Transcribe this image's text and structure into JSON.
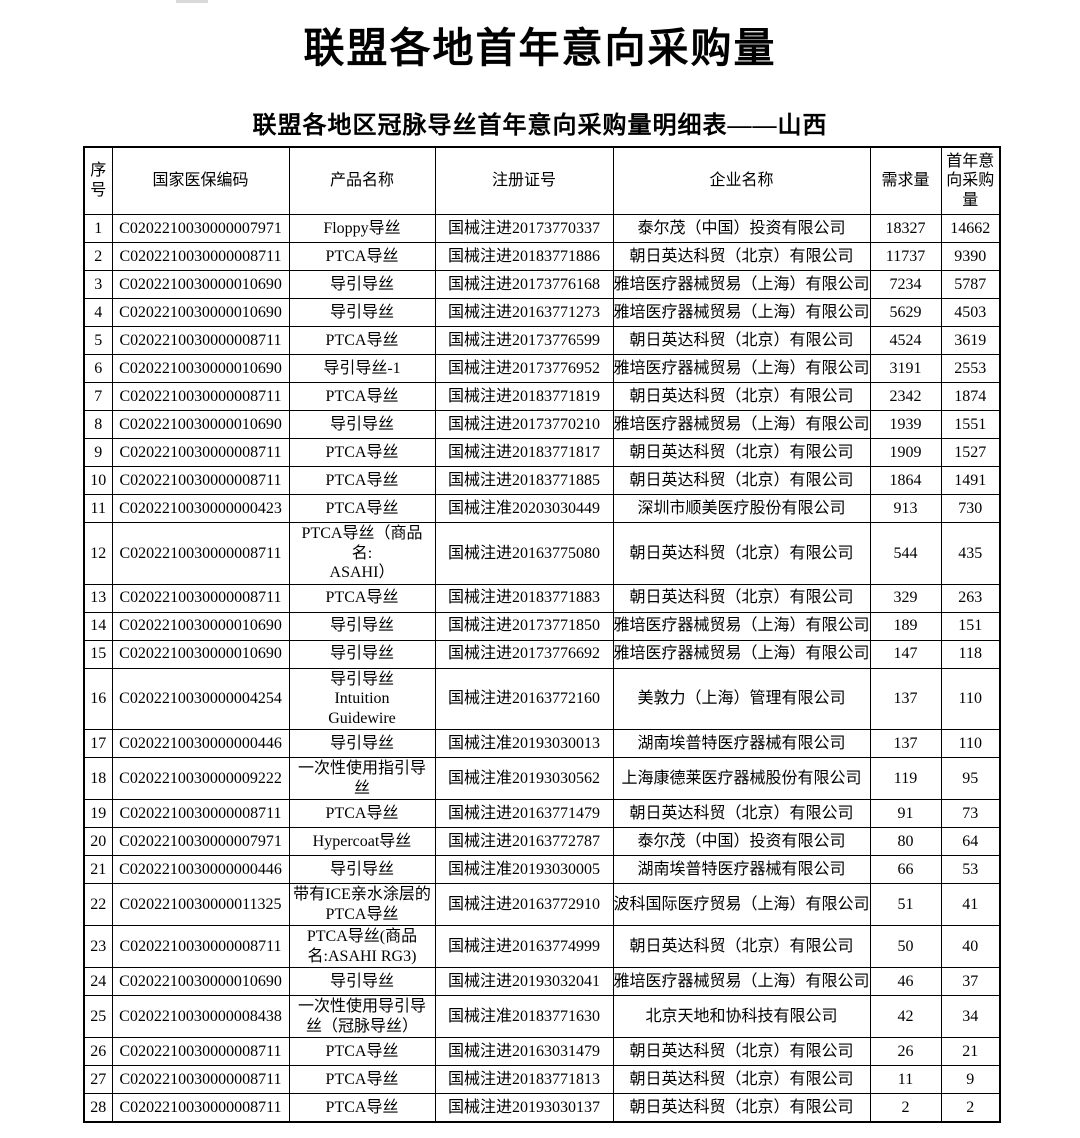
{
  "page": {
    "title": "联盟各地首年意向采购量",
    "subtitle": "联盟各地区冠脉导丝首年意向采购量明细表——山西"
  },
  "table": {
    "columns": [
      {
        "key": "index",
        "label": "序号"
      },
      {
        "key": "code",
        "label": "国家医保编码"
      },
      {
        "key": "product",
        "label": "产品名称"
      },
      {
        "key": "registration",
        "label": "注册证号"
      },
      {
        "key": "company",
        "label": "企业名称"
      },
      {
        "key": "demand",
        "label": "需求量"
      },
      {
        "key": "first_year",
        "label": "首年意向采购量"
      }
    ],
    "rows": [
      {
        "index": "1",
        "code": "C0202210030000007971",
        "product": "Floppy导丝",
        "registration": "国械注进20173770337",
        "company": "泰尔茂（中国）投资有限公司",
        "demand": "18327",
        "first_year": "14662"
      },
      {
        "index": "2",
        "code": "C0202210030000008711",
        "product": "PTCA导丝",
        "registration": "国械注进20183771886",
        "company": "朝日英达科贸（北京）有限公司",
        "demand": "11737",
        "first_year": "9390"
      },
      {
        "index": "3",
        "code": "C0202210030000010690",
        "product": "导引导丝",
        "registration": "国械注进20173776168",
        "company": "雅培医疗器械贸易（上海）有限公司",
        "demand": "7234",
        "first_year": "5787"
      },
      {
        "index": "4",
        "code": "C0202210030000010690",
        "product": "导引导丝",
        "registration": "国械注进20163771273",
        "company": "雅培医疗器械贸易（上海）有限公司",
        "demand": "5629",
        "first_year": "4503"
      },
      {
        "index": "5",
        "code": "C0202210030000008711",
        "product": "PTCA导丝",
        "registration": "国械注进20173776599",
        "company": "朝日英达科贸（北京）有限公司",
        "demand": "4524",
        "first_year": "3619"
      },
      {
        "index": "6",
        "code": "C0202210030000010690",
        "product": "导引导丝-1",
        "registration": "国械注进20173776952",
        "company": "雅培医疗器械贸易（上海）有限公司",
        "demand": "3191",
        "first_year": "2553"
      },
      {
        "index": "7",
        "code": "C0202210030000008711",
        "product": "PTCA导丝",
        "registration": "国械注进20183771819",
        "company": "朝日英达科贸（北京）有限公司",
        "demand": "2342",
        "first_year": "1874"
      },
      {
        "index": "8",
        "code": "C0202210030000010690",
        "product": "导引导丝",
        "registration": "国械注进20173770210",
        "company": "雅培医疗器械贸易（上海）有限公司",
        "demand": "1939",
        "first_year": "1551"
      },
      {
        "index": "9",
        "code": "C0202210030000008711",
        "product": "PTCA导丝",
        "registration": "国械注进20183771817",
        "company": "朝日英达科贸（北京）有限公司",
        "demand": "1909",
        "first_year": "1527"
      },
      {
        "index": "10",
        "code": "C0202210030000008711",
        "product": "PTCA导丝",
        "registration": "国械注进20183771885",
        "company": "朝日英达科贸（北京）有限公司",
        "demand": "1864",
        "first_year": "1491"
      },
      {
        "index": "11",
        "code": "C0202210030000000423",
        "product": "PTCA导丝",
        "registration": "国械注准20203030449",
        "company": "深圳市顺美医疗股份有限公司",
        "demand": "913",
        "first_year": "730"
      },
      {
        "index": "12",
        "code": "C0202210030000008711",
        "product": "PTCA导丝（商品名:\nASAHI）",
        "registration": "国械注进20163775080",
        "company": "朝日英达科贸（北京）有限公司",
        "demand": "544",
        "first_year": "435"
      },
      {
        "index": "13",
        "code": "C0202210030000008711",
        "product": "PTCA导丝",
        "registration": "国械注进20183771883",
        "company": "朝日英达科贸（北京）有限公司",
        "demand": "329",
        "first_year": "263"
      },
      {
        "index": "14",
        "code": "C0202210030000010690",
        "product": "导引导丝",
        "registration": "国械注进20173771850",
        "company": "雅培医疗器械贸易（上海）有限公司",
        "demand": "189",
        "first_year": "151"
      },
      {
        "index": "15",
        "code": "C0202210030000010690",
        "product": "导引导丝",
        "registration": "国械注进20173776692",
        "company": "雅培医疗器械贸易（上海）有限公司",
        "demand": "147",
        "first_year": "118"
      },
      {
        "index": "16",
        "code": "C0202210030000004254",
        "product": "导引导丝\nIntuition\nGuidewire",
        "registration": "国械注进20163772160",
        "company": "美敦力（上海）管理有限公司",
        "demand": "137",
        "first_year": "110"
      },
      {
        "index": "17",
        "code": "C0202210030000000446",
        "product": "导引导丝",
        "registration": "国械注准20193030013",
        "company": "湖南埃普特医疗器械有限公司",
        "demand": "137",
        "first_year": "110"
      },
      {
        "index": "18",
        "code": "C0202210030000009222",
        "product": "一次性使用指引导\n丝",
        "registration": "国械注准20193030562",
        "company": "上海康德莱医疗器械股份有限公司",
        "demand": "119",
        "first_year": "95"
      },
      {
        "index": "19",
        "code": "C0202210030000008711",
        "product": "PTCA导丝",
        "registration": "国械注进20163771479",
        "company": "朝日英达科贸（北京）有限公司",
        "demand": "91",
        "first_year": "73"
      },
      {
        "index": "20",
        "code": "C0202210030000007971",
        "product": "Hypercoat导丝",
        "registration": "国械注进20163772787",
        "company": "泰尔茂（中国）投资有限公司",
        "demand": "80",
        "first_year": "64"
      },
      {
        "index": "21",
        "code": "C0202210030000000446",
        "product": "导引导丝",
        "registration": "国械注准20193030005",
        "company": "湖南埃普特医疗器械有限公司",
        "demand": "66",
        "first_year": "53"
      },
      {
        "index": "22",
        "code": "C0202210030000011325",
        "product": "带有ICE亲水涂层的\nPTCA导丝",
        "registration": "国械注进20163772910",
        "company": "波科国际医疗贸易（上海）有限公司",
        "demand": "51",
        "first_year": "41"
      },
      {
        "index": "23",
        "code": "C0202210030000008711",
        "product": "PTCA导丝(商品\n名:ASAHI RG3)",
        "registration": "国械注进20163774999",
        "company": "朝日英达科贸（北京）有限公司",
        "demand": "50",
        "first_year": "40"
      },
      {
        "index": "24",
        "code": "C0202210030000010690",
        "product": "导引导丝",
        "registration": "国械注进20193032041",
        "company": "雅培医疗器械贸易（上海）有限公司",
        "demand": "46",
        "first_year": "37"
      },
      {
        "index": "25",
        "code": "C0202210030000008438",
        "product": "一次性使用导引导\n丝（冠脉导丝）",
        "registration": "国械注准20183771630",
        "company": "北京天地和协科技有限公司",
        "demand": "42",
        "first_year": "34"
      },
      {
        "index": "26",
        "code": "C0202210030000008711",
        "product": "PTCA导丝",
        "registration": "国械注进20163031479",
        "company": "朝日英达科贸（北京）有限公司",
        "demand": "26",
        "first_year": "21"
      },
      {
        "index": "27",
        "code": "C0202210030000008711",
        "product": "PTCA导丝",
        "registration": "国械注进20183771813",
        "company": "朝日英达科贸（北京）有限公司",
        "demand": "11",
        "first_year": "9"
      },
      {
        "index": "28",
        "code": "C0202210030000008711",
        "product": "PTCA导丝",
        "registration": "国械注进20193030137",
        "company": "朝日英达科贸（北京）有限公司",
        "demand": "2",
        "first_year": "2"
      }
    ]
  }
}
